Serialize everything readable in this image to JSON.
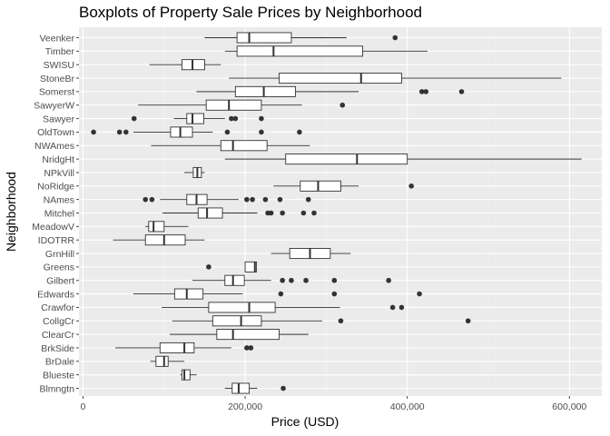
{
  "chart_data": {
    "type": "boxplot",
    "orientation": "horizontal",
    "title": "Boxplots of Property Sale Prices by Neighborhood",
    "xlabel": "Price (USD)",
    "ylabel": "Neighborhood",
    "xlim": [
      -5000,
      640000
    ],
    "x_ticks": [
      0,
      200000,
      400000,
      600000
    ],
    "x_tick_labels": [
      "0",
      "200,000",
      "400,000",
      "600,000"
    ],
    "grid": true,
    "colors": {
      "panel": "#ebebeb",
      "grid_major": "#ffffff",
      "grid_minor": "#f3f3f3",
      "box_fill": "#ffffff",
      "line": "#333333",
      "point": "#333333"
    },
    "groups": [
      {
        "name": "Veenker",
        "whisker_low": 150000,
        "q1": 190000,
        "median": 205000,
        "q3": 257000,
        "whisker_high": 325000,
        "outliers": [
          385000
        ]
      },
      {
        "name": "Timber",
        "whisker_low": 175000,
        "q1": 190000,
        "median": 235000,
        "q3": 345000,
        "whisker_high": 425000,
        "outliers": []
      },
      {
        "name": "SWISU",
        "whisker_low": 82000,
        "q1": 122000,
        "median": 135000,
        "q3": 150000,
        "whisker_high": 170000,
        "outliers": []
      },
      {
        "name": "StoneBr",
        "whisker_low": 180000,
        "q1": 242000,
        "median": 343000,
        "q3": 393000,
        "whisker_high": 590000,
        "outliers": []
      },
      {
        "name": "Somerst",
        "whisker_low": 140000,
        "q1": 188000,
        "median": 223000,
        "q3": 262000,
        "whisker_high": 340000,
        "outliers": [
          418000,
          423000,
          467000
        ]
      },
      {
        "name": "SawyerW",
        "whisker_low": 68000,
        "q1": 152000,
        "median": 180000,
        "q3": 220000,
        "whisker_high": 270000,
        "outliers": [
          320000
        ]
      },
      {
        "name": "Sawyer",
        "whisker_low": 112000,
        "q1": 128000,
        "median": 135000,
        "q3": 149000,
        "whisker_high": 175000,
        "outliers": [
          63000,
          183000,
          188000,
          220000
        ]
      },
      {
        "name": "OldTown",
        "whisker_low": 62000,
        "q1": 108000,
        "median": 120000,
        "q3": 135000,
        "whisker_high": 160000,
        "outliers": [
          13000,
          45000,
          53000,
          178000,
          220000,
          267000
        ]
      },
      {
        "name": "NWAmes",
        "whisker_low": 84000,
        "q1": 170000,
        "median": 185000,
        "q3": 227000,
        "whisker_high": 280000,
        "outliers": []
      },
      {
        "name": "NridgHt",
        "whisker_low": 175000,
        "q1": 250000,
        "median": 338000,
        "q3": 400000,
        "whisker_high": 615000,
        "outliers": []
      },
      {
        "name": "NPkVill",
        "whisker_low": 125000,
        "q1": 136000,
        "median": 141000,
        "q3": 146000,
        "whisker_high": 150000,
        "outliers": []
      },
      {
        "name": "NoRidge",
        "whisker_low": 235000,
        "q1": 268000,
        "median": 290000,
        "q3": 318000,
        "whisker_high": 340000,
        "outliers": [
          405000
        ]
      },
      {
        "name": "NAmes",
        "whisker_low": 95000,
        "q1": 128000,
        "median": 140000,
        "q3": 153000,
        "whisker_high": 192000,
        "outliers": [
          77000,
          85000,
          202000,
          209000,
          225000,
          243000,
          278000
        ]
      },
      {
        "name": "Mitchel",
        "whisker_low": 98000,
        "q1": 142000,
        "median": 153000,
        "q3": 172000,
        "whisker_high": 215000,
        "outliers": [
          228000,
          232000,
          246000,
          272000,
          285000
        ]
      },
      {
        "name": "MeadowV",
        "whisker_low": 77000,
        "q1": 81000,
        "median": 87000,
        "q3": 100000,
        "whisker_high": 130000,
        "outliers": []
      },
      {
        "name": "IDOTRR",
        "whisker_low": 37000,
        "q1": 77000,
        "median": 100000,
        "q3": 126000,
        "whisker_high": 150000,
        "outliers": []
      },
      {
        "name": "GrnHill",
        "whisker_low": 232000,
        "q1": 255000,
        "median": 280000,
        "q3": 305000,
        "whisker_high": 330000,
        "outliers": []
      },
      {
        "name": "Greens",
        "whisker_low": 200000,
        "q1": 200000,
        "median": 212000,
        "q3": 214000,
        "whisker_high": 214000,
        "outliers": [
          155000
        ]
      },
      {
        "name": "Gilbert",
        "whisker_low": 135000,
        "q1": 175000,
        "median": 185000,
        "q3": 199000,
        "whisker_high": 232000,
        "outliers": [
          246000,
          257000,
          275000,
          310000,
          377000
        ]
      },
      {
        "name": "Edwards",
        "whisker_low": 62000,
        "q1": 113000,
        "median": 128000,
        "q3": 148000,
        "whisker_high": 197000,
        "outliers": [
          244000,
          310000,
          415000
        ]
      },
      {
        "name": "Crawfor",
        "whisker_low": 97000,
        "q1": 155000,
        "median": 205000,
        "q3": 237000,
        "whisker_high": 317000,
        "outliers": [
          382000,
          393000
        ]
      },
      {
        "name": "CollgCr",
        "whisker_low": 110000,
        "q1": 160000,
        "median": 195000,
        "q3": 220000,
        "whisker_high": 295000,
        "outliers": [
          318000,
          475000
        ]
      },
      {
        "name": "ClearCr",
        "whisker_low": 107000,
        "q1": 165000,
        "median": 185000,
        "q3": 242000,
        "whisker_high": 278000,
        "outliers": []
      },
      {
        "name": "BrkSide",
        "whisker_low": 40000,
        "q1": 95000,
        "median": 125000,
        "q3": 137000,
        "whisker_high": 183000,
        "outliers": [
          202000,
          207000
        ]
      },
      {
        "name": "BrDale",
        "whisker_low": 83000,
        "q1": 90000,
        "median": 100000,
        "q3": 105000,
        "whisker_high": 125000,
        "outliers": []
      },
      {
        "name": "Blueste",
        "whisker_low": 120000,
        "q1": 122000,
        "median": 125000,
        "q3": 132000,
        "whisker_high": 140000,
        "outliers": []
      },
      {
        "name": "Blmngtn",
        "whisker_low": 175000,
        "q1": 184000,
        "median": 192000,
        "q3": 205000,
        "whisker_high": 215000,
        "outliers": [
          247000
        ]
      }
    ]
  }
}
